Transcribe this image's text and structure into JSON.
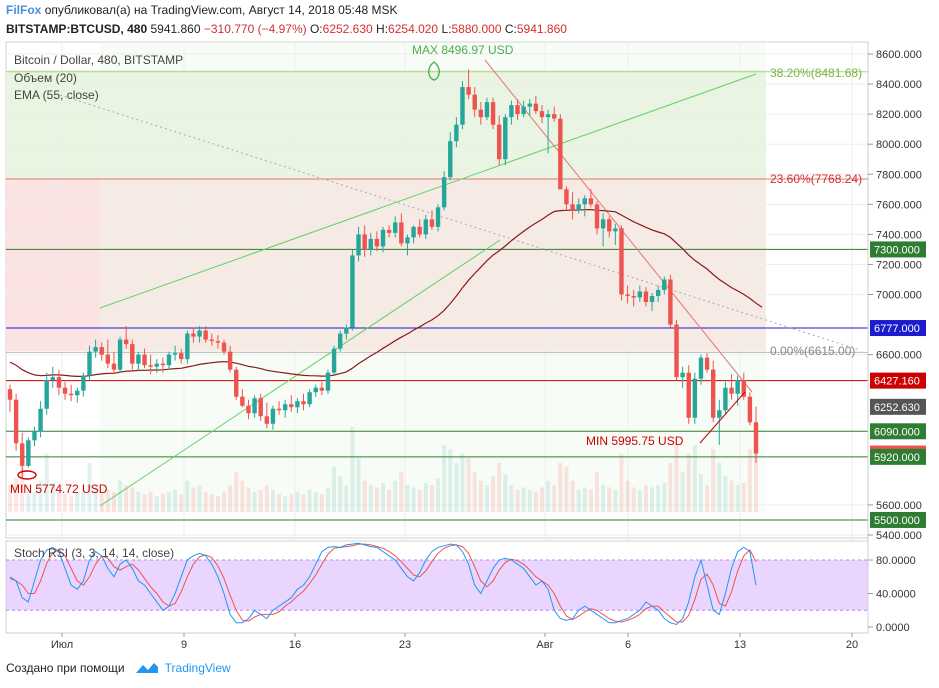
{
  "header": {
    "brand": "FilFox",
    "published_text": "опубликовал(а) на TradingView.com, Август 14, 2018 05:48 MSK",
    "symbol": "BITSTAMP:BTCUSD, 480",
    "last": "5941.860",
    "change": "−310.770 (−4.97%)",
    "open_label": "O:",
    "open": "6252.630",
    "high_label": "H:",
    "high": "6254.020",
    "low_label": "L:",
    "low": "5880.000",
    "close_label": "C:",
    "close": "5941.860"
  },
  "legend": {
    "title": "Bitcoin / Dollar, 480, BITSTAMP",
    "volume": "Объем (20)",
    "ema": "EMA (55, close)",
    "stoch": "Stoch RSI (3, 3, 14, 14, close)"
  },
  "annotations": {
    "max": "MAX 8496.97 USD",
    "min_left": "MIN 5774.72 USD",
    "min_right": "MIN 5995.75 USD",
    "fib_382": "38.20%(8481.68)",
    "fib_236": "23.60%(7768.24)",
    "fib_0": "0.00%(6615.00)"
  },
  "colors": {
    "up": "#26a69a",
    "down": "#ef5350",
    "ema": "#8b1a1a",
    "stoch_k": "#2196f3",
    "stoch_d": "#ef5350",
    "stoch_band": "#d9b3ff",
    "fib_green": "#e8f5e0",
    "fib_red": "#fbe3e3",
    "level_blue": "#1c1ccc",
    "level_red": "#cc0000",
    "level_green": "#2e7d32"
  },
  "chart_data": {
    "type": "candlestick",
    "y_axis": {
      "range": [
        5380,
        8680
      ],
      "ticks": [
        "8600.000",
        "8400.000",
        "8200.000",
        "8000.000",
        "7800.000",
        "7600.000",
        "7400.000",
        "7200.000",
        "7000.000",
        "6600.000",
        "5600.000",
        "5400.000"
      ],
      "tick_values": [
        8600,
        8400,
        8200,
        8000,
        7800,
        7600,
        7400,
        7200,
        7000,
        6600,
        5600,
        5400
      ]
    },
    "price_labels": [
      {
        "value": 7300,
        "text": "7300.000",
        "color": "#2e7d32"
      },
      {
        "value": 6777,
        "text": "6777.000",
        "color": "#1c1ccc"
      },
      {
        "value": 6427.16,
        "text": "6427.160",
        "color": "#cc0000"
      },
      {
        "value": 6252.63,
        "text": "6252.630",
        "color": "#555555"
      },
      {
        "value": 6090,
        "text": "6090.000",
        "color": "#2e7d32"
      },
      {
        "value": 5941.86,
        "text": "5941.860",
        "color": "#ef5350"
      },
      {
        "value": 5920,
        "text": "5920.000",
        "color": "#2e7d32"
      },
      {
        "value": 5500,
        "text": "5500.000",
        "color": "#2e7d32"
      }
    ],
    "x_axis": {
      "labels": [
        "Июл",
        "9",
        "16",
        "23",
        "Авг",
        "6",
        "13",
        "20"
      ]
    },
    "stoch_axis": {
      "ticks": [
        "80.0000",
        "40.0000",
        "0.0000"
      ],
      "tick_values": [
        80,
        40,
        0
      ]
    },
    "candles": [
      [
        6370,
        6400,
        6220,
        6300
      ],
      [
        6300,
        6340,
        5960,
        6010
      ],
      [
        6010,
        6080,
        5775,
        5860
      ],
      [
        5860,
        6050,
        5850,
        6030
      ],
      [
        6030,
        6120,
        5990,
        6090
      ],
      [
        6090,
        6290,
        6050,
        6240
      ],
      [
        6240,
        6480,
        6200,
        6430
      ],
      [
        6430,
        6520,
        6380,
        6450
      ],
      [
        6450,
        6500,
        6330,
        6380
      ],
      [
        6380,
        6420,
        6300,
        6340
      ],
      [
        6340,
        6400,
        6290,
        6330
      ],
      [
        6330,
        6380,
        6280,
        6360
      ],
      [
        6360,
        6480,
        6320,
        6460
      ],
      [
        6460,
        6660,
        6430,
        6620
      ],
      [
        6620,
        6700,
        6580,
        6650
      ],
      [
        6650,
        6680,
        6560,
        6600
      ],
      [
        6600,
        6700,
        6510,
        6540
      ],
      [
        6540,
        6620,
        6470,
        6500
      ],
      [
        6500,
        6720,
        6480,
        6700
      ],
      [
        6700,
        6790,
        6640,
        6670
      ],
      [
        6670,
        6700,
        6500,
        6540
      ],
      [
        6540,
        6620,
        6490,
        6600
      ],
      [
        6600,
        6640,
        6510,
        6530
      ],
      [
        6530,
        6600,
        6470,
        6520
      ],
      [
        6520,
        6570,
        6480,
        6540
      ],
      [
        6540,
        6580,
        6480,
        6530
      ],
      [
        6530,
        6620,
        6500,
        6600
      ],
      [
        6600,
        6660,
        6560,
        6610
      ],
      [
        6610,
        6640,
        6540,
        6570
      ],
      [
        6570,
        6760,
        6540,
        6740
      ],
      [
        6740,
        6780,
        6680,
        6720
      ],
      [
        6720,
        6790,
        6680,
        6760
      ],
      [
        6760,
        6790,
        6680,
        6700
      ],
      [
        6700,
        6740,
        6660,
        6690
      ],
      [
        6690,
        6730,
        6640,
        6680
      ],
      [
        6680,
        6700,
        6600,
        6620
      ],
      [
        6620,
        6660,
        6480,
        6500
      ],
      [
        6500,
        6520,
        6300,
        6320
      ],
      [
        6320,
        6370,
        6250,
        6260
      ],
      [
        6260,
        6300,
        6170,
        6210
      ],
      [
        6210,
        6330,
        6180,
        6310
      ],
      [
        6310,
        6340,
        6160,
        6190
      ],
      [
        6190,
        6280,
        6110,
        6140
      ],
      [
        6140,
        6260,
        6100,
        6240
      ],
      [
        6240,
        6290,
        6200,
        6230
      ],
      [
        6230,
        6300,
        6180,
        6270
      ],
      [
        6270,
        6330,
        6220,
        6250
      ],
      [
        6250,
        6310,
        6210,
        6290
      ],
      [
        6290,
        6340,
        6230,
        6270
      ],
      [
        6270,
        6370,
        6250,
        6350
      ],
      [
        6350,
        6400,
        6320,
        6380
      ],
      [
        6380,
        6420,
        6330,
        6360
      ],
      [
        6360,
        6500,
        6340,
        6480
      ],
      [
        6480,
        6660,
        6460,
        6640
      ],
      [
        6640,
        6760,
        6620,
        6740
      ],
      [
        6740,
        6800,
        6700,
        6780
      ],
      [
        6780,
        7300,
        6760,
        7260
      ],
      [
        7260,
        7450,
        7220,
        7400
      ],
      [
        7400,
        7460,
        7250,
        7300
      ],
      [
        7300,
        7410,
        7260,
        7370
      ],
      [
        7370,
        7420,
        7290,
        7320
      ],
      [
        7320,
        7450,
        7280,
        7430
      ],
      [
        7430,
        7460,
        7380,
        7410
      ],
      [
        7410,
        7520,
        7380,
        7480
      ],
      [
        7480,
        7540,
        7320,
        7340
      ],
      [
        7340,
        7400,
        7260,
        7380
      ],
      [
        7380,
        7460,
        7340,
        7450
      ],
      [
        7450,
        7500,
        7380,
        7400
      ],
      [
        7400,
        7530,
        7370,
        7500
      ],
      [
        7500,
        7560,
        7430,
        7450
      ],
      [
        7450,
        7600,
        7420,
        7580
      ],
      [
        7580,
        7820,
        7560,
        7780
      ],
      [
        7780,
        8080,
        7760,
        8020
      ],
      [
        8020,
        8180,
        7980,
        8130
      ],
      [
        8130,
        8420,
        8100,
        8380
      ],
      [
        8380,
        8497,
        8300,
        8330
      ],
      [
        8330,
        8380,
        8180,
        8230
      ],
      [
        8230,
        8280,
        8130,
        8180
      ],
      [
        8180,
        8310,
        8160,
        8280
      ],
      [
        8280,
        8310,
        8100,
        8130
      ],
      [
        8130,
        8190,
        7860,
        7900
      ],
      [
        7900,
        8200,
        7860,
        8180
      ],
      [
        8180,
        8290,
        8130,
        8260
      ],
      [
        8260,
        8300,
        8160,
        8200
      ],
      [
        8200,
        8290,
        8180,
        8250
      ],
      [
        8250,
        8300,
        8190,
        8270
      ],
      [
        8270,
        8320,
        8200,
        8220
      ],
      [
        8220,
        8260,
        8140,
        8180
      ],
      [
        8180,
        8230,
        7940,
        8200
      ],
      [
        8200,
        8250,
        8150,
        8170
      ],
      [
        8170,
        8200,
        7720,
        7700
      ],
      [
        7700,
        7720,
        7560,
        7600
      ],
      [
        7600,
        7680,
        7500,
        7560
      ],
      [
        7560,
        7640,
        7540,
        7600
      ],
      [
        7600,
        7660,
        7520,
        7640
      ],
      [
        7640,
        7700,
        7580,
        7600
      ],
      [
        7600,
        7620,
        7400,
        7440
      ],
      [
        7440,
        7540,
        7320,
        7500
      ],
      [
        7500,
        7520,
        7380,
        7420
      ],
      [
        7420,
        7470,
        7330,
        7440
      ],
      [
        7440,
        7460,
        6960,
        7000
      ],
      [
        7000,
        7060,
        6940,
        6990
      ],
      [
        6990,
        7030,
        6920,
        6980
      ],
      [
        6980,
        7060,
        6950,
        7020
      ],
      [
        7020,
        7050,
        6920,
        6950
      ],
      [
        6950,
        7010,
        6890,
        6990
      ],
      [
        6990,
        7060,
        6950,
        7030
      ],
      [
        7030,
        7120,
        7000,
        7100
      ],
      [
        7100,
        7130,
        6780,
        6800
      ],
      [
        6800,
        6830,
        6430,
        6450
      ],
      [
        6450,
        6520,
        6380,
        6480
      ],
      [
        6480,
        6530,
        6140,
        6180
      ],
      [
        6180,
        6480,
        6140,
        6440
      ],
      [
        6440,
        6600,
        6400,
        6580
      ],
      [
        6580,
        6610,
        6480,
        6500
      ],
      [
        6500,
        6560,
        6150,
        6180
      ],
      [
        6180,
        6300,
        6000,
        6230
      ],
      [
        6230,
        6420,
        6200,
        6380
      ],
      [
        6380,
        6470,
        6300,
        6340
      ],
      [
        6340,
        6460,
        6260,
        6430
      ],
      [
        6430,
        6480,
        6300,
        6320
      ],
      [
        6320,
        6350,
        6130,
        6150
      ],
      [
        6150,
        6254,
        5880,
        5942
      ]
    ],
    "volume": [
      12,
      15,
      28,
      10,
      9,
      14,
      26,
      13,
      9,
      8,
      7,
      9,
      10,
      22,
      12,
      8,
      10,
      9,
      14,
      12,
      11,
      9,
      8,
      9,
      7,
      8,
      9,
      10,
      8,
      14,
      11,
      12,
      9,
      8,
      7,
      9,
      12,
      18,
      14,
      11,
      9,
      10,
      12,
      10,
      8,
      7,
      8,
      9,
      8,
      10,
      9,
      8,
      11,
      20,
      16,
      12,
      38,
      24,
      14,
      12,
      11,
      13,
      10,
      14,
      18,
      12,
      11,
      10,
      13,
      12,
      15,
      30,
      28,
      22,
      26,
      24,
      18,
      14,
      12,
      16,
      22,
      17,
      12,
      10,
      11,
      10,
      9,
      11,
      14,
      12,
      22,
      20,
      14,
      10,
      11,
      10,
      18,
      12,
      11,
      10,
      26,
      14,
      11,
      10,
      12,
      11,
      12,
      13,
      22,
      30,
      18,
      26,
      30,
      17,
      12,
      28,
      22,
      16,
      14,
      12,
      13,
      28,
      30
    ],
    "ema": [
      6550,
      6530,
      6500,
      6480,
      6465,
      6460,
      6462,
      6465,
      6465,
      6462,
      6458,
      6455,
      6455,
      6460,
      6467,
      6472,
      6475,
      6476,
      6484,
      6490,
      6492,
      6495,
      6496,
      6497,
      6498,
      6499,
      6503,
      6507,
      6509,
      6518,
      6526,
      6535,
      6541,
      6546,
      6551,
      6553,
      6551,
      6543,
      6533,
      6522,
      6516,
      6507,
      6496,
      6489,
      6483,
      6478,
      6472,
      6467,
      6462,
      6460,
      6459,
      6457,
      6458,
      6464,
      6474,
      6485,
      6510,
      6540,
      6566,
      6592,
      6615,
      6642,
      6667,
      6693,
      6716,
      6738,
      6763,
      6785,
      6810,
      6831,
      6859,
      6894,
      6940,
      6990,
      7045,
      7095,
      7140,
      7182,
      7225,
      7262,
      7290,
      7323,
      7358,
      7390,
      7420,
      7450,
      7476,
      7500,
      7528,
      7552,
      7558,
      7560,
      7561,
      7562,
      7564,
      7565,
      7560,
      7558,
      7554,
      7550,
      7528,
      7506,
      7484,
      7465,
      7447,
      7430,
      7416,
      7404,
      7380,
      7342,
      7305,
      7262,
      7227,
      7198,
      7170,
      7133,
      7100,
      7073,
      7046,
      7024,
      7001,
      6974,
      6942,
      6915
    ],
    "stoch_k": [
      60,
      55,
      35,
      30,
      55,
      80,
      92,
      95,
      90,
      70,
      50,
      45,
      55,
      80,
      90,
      85,
      70,
      60,
      75,
      80,
      70,
      55,
      50,
      40,
      30,
      20,
      25,
      40,
      60,
      80,
      85,
      88,
      85,
      75,
      60,
      40,
      15,
      5,
      5,
      10,
      20,
      15,
      10,
      20,
      25,
      30,
      35,
      45,
      50,
      60,
      75,
      90,
      95,
      96,
      95,
      98,
      99,
      100,
      98,
      96,
      95,
      90,
      85,
      80,
      70,
      60,
      55,
      65,
      80,
      90,
      95,
      97,
      99,
      98,
      90,
      75,
      50,
      40,
      55,
      70,
      80,
      82,
      80,
      75,
      70,
      60,
      50,
      55,
      45,
      20,
      10,
      8,
      10,
      20,
      25,
      20,
      15,
      10,
      5,
      5,
      8,
      10,
      15,
      20,
      30,
      25,
      20,
      10,
      5,
      3,
      10,
      30,
      60,
      80,
      50,
      20,
      15,
      40,
      70,
      90,
      95,
      90,
      50
    ],
    "stoch_d": [
      58,
      55,
      50,
      40,
      40,
      55,
      76,
      89,
      92,
      85,
      70,
      55,
      50,
      60,
      75,
      85,
      82,
      72,
      68,
      72,
      75,
      68,
      58,
      48,
      40,
      30,
      25,
      28,
      42,
      60,
      75,
      84,
      86,
      83,
      73,
      58,
      38,
      20,
      8,
      7,
      12,
      15,
      15,
      15,
      18,
      25,
      30,
      37,
      43,
      52,
      62,
      75,
      87,
      94,
      95,
      96,
      97,
      99,
      99,
      98,
      96,
      94,
      90,
      85,
      78,
      70,
      62,
      60,
      67,
      78,
      88,
      94,
      97,
      98,
      96,
      88,
      72,
      55,
      48,
      55,
      68,
      77,
      81,
      79,
      75,
      68,
      60,
      55,
      50,
      40,
      25,
      13,
      9,
      13,
      18,
      22,
      20,
      15,
      10,
      7,
      6,
      8,
      11,
      15,
      22,
      25,
      25,
      18,
      12,
      6,
      6,
      14,
      33,
      57,
      63,
      50,
      28,
      25,
      42,
      67,
      85,
      92,
      78
    ]
  }
}
